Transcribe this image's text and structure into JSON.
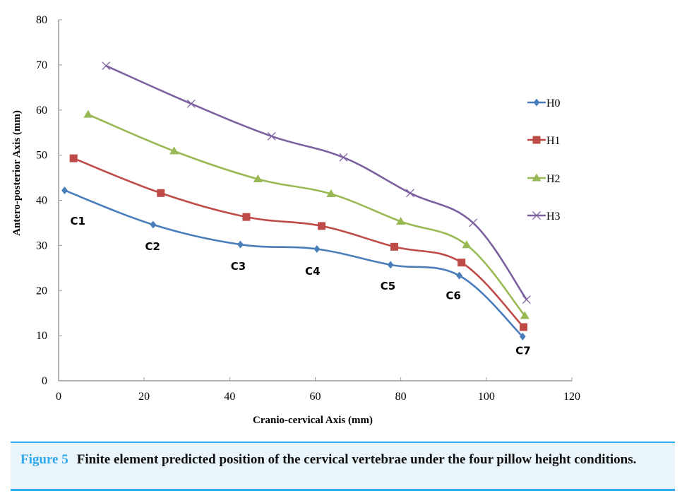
{
  "chart_data": {
    "type": "line",
    "title": "",
    "xlabel": "Cranio-cervical Axis (mm)",
    "ylabel": "Antero-posterior Axis (mm)",
    "xlim": [
      0,
      120
    ],
    "ylim": [
      0,
      80
    ],
    "xticks": [
      0,
      20,
      40,
      60,
      80,
      100,
      120
    ],
    "yticks": [
      0,
      10,
      20,
      30,
      40,
      50,
      60,
      70,
      80
    ],
    "grid": false,
    "smooth": true,
    "legend_position": "right",
    "series": [
      {
        "name": "H0",
        "color": "#4a7ebb",
        "marker": "diamond",
        "x": [
          1.4,
          22.1,
          42.5,
          60.4,
          77.6,
          93.7,
          108.5
        ],
        "y": [
          42.2,
          34.6,
          30.2,
          29.2,
          25.7,
          23.3,
          9.8
        ]
      },
      {
        "name": "H1",
        "color": "#be4b48",
        "marker": "square",
        "x": [
          3.5,
          23.9,
          43.9,
          61.5,
          78.5,
          94.2,
          108.7
        ],
        "y": [
          49.3,
          41.6,
          36.3,
          34.3,
          29.7,
          26.2,
          11.9
        ]
      },
      {
        "name": "H2",
        "color": "#98b954",
        "marker": "triangle",
        "x": [
          6.9,
          27.0,
          46.6,
          63.7,
          80.0,
          95.4,
          109.0
        ],
        "y": [
          59.0,
          50.9,
          44.7,
          41.4,
          35.3,
          30.1,
          14.4
        ]
      },
      {
        "name": "H3",
        "color": "#7d60a0",
        "marker": "x",
        "x": [
          11.1,
          31.0,
          49.8,
          66.6,
          82.2,
          96.9,
          109.4
        ],
        "y": [
          69.8,
          61.4,
          54.2,
          49.5,
          41.6,
          35.0,
          18.0
        ]
      }
    ],
    "annotations": [
      {
        "text": "C1",
        "x": 4.5,
        "y": 35.5
      },
      {
        "text": "C2",
        "x": 22.0,
        "y": 29.9
      },
      {
        "text": "C3",
        "x": 42.0,
        "y": 25.5
      },
      {
        "text": "C4",
        "x": 59.4,
        "y": 24.4
      },
      {
        "text": "C5",
        "x": 77.0,
        "y": 21.1
      },
      {
        "text": "C6",
        "x": 92.3,
        "y": 19.0
      },
      {
        "text": "C7",
        "x": 108.6,
        "y": 6.8
      }
    ]
  },
  "caption": {
    "figure_number": "Figure 5",
    "text": "Finite element predicted position of the cervical vertebrae under the four pillow height conditions."
  }
}
